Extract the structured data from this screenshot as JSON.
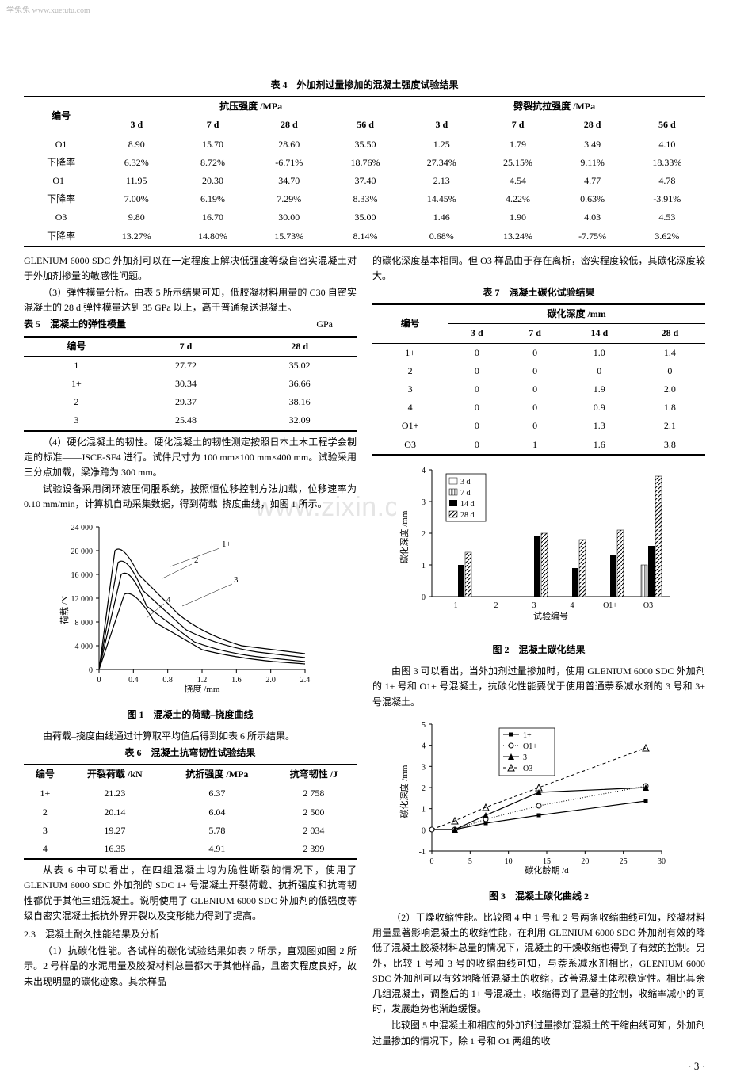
{
  "watermark_top": "学兔兔 www.xuetutu.com",
  "watermark_center": "www.zixin.com.cn",
  "table4": {
    "title": "表 4　外加剂过量掺加的混凝土强度试验结果",
    "col_no": "编号",
    "group1": "抗压强度 /MPa",
    "group2": "劈裂抗拉强度 /MPa",
    "sub": [
      "3 d",
      "7 d",
      "28 d",
      "56 d",
      "3 d",
      "7 d",
      "28 d",
      "56 d"
    ],
    "rows": [
      [
        "O1",
        "8.90",
        "15.70",
        "28.60",
        "35.50",
        "1.25",
        "1.79",
        "3.49",
        "4.10"
      ],
      [
        "下降率",
        "6.32%",
        "8.72%",
        "-6.71%",
        "18.76%",
        "27.34%",
        "25.15%",
        "9.11%",
        "18.33%"
      ],
      [
        "O1+",
        "11.95",
        "20.30",
        "34.70",
        "37.40",
        "2.13",
        "4.54",
        "4.77",
        "4.78"
      ],
      [
        "下降率",
        "7.00%",
        "6.19%",
        "7.29%",
        "8.33%",
        "14.45%",
        "4.22%",
        "0.63%",
        "-3.91%"
      ],
      [
        "O3",
        "9.80",
        "16.70",
        "30.00",
        "35.00",
        "1.46",
        "1.90",
        "4.03",
        "4.53"
      ],
      [
        "下降率",
        "13.27%",
        "14.80%",
        "15.73%",
        "8.14%",
        "0.68%",
        "13.24%",
        "-7.75%",
        "3.62%"
      ]
    ]
  },
  "left": {
    "p1": "GLENIUM 6000 SDC 外加剂可以在一定程度上解决低强度等级自密实混凝土对于外加剂掺量的敏感性问题。",
    "p2": "（3）弹性模量分析。由表 5 所示结果可知，低胶凝材料用量的 C30 自密实混凝土的 28 d 弹性模量达到 35 GPa 以上，高于普通泵送混凝土。",
    "table5": {
      "title": "表 5　混凝土的弹性模量",
      "unit": "GPa",
      "headers": [
        "编号",
        "7 d",
        "28 d"
      ],
      "rows": [
        [
          "1",
          "27.72",
          "35.02"
        ],
        [
          "1+",
          "30.34",
          "36.66"
        ],
        [
          "2",
          "29.37",
          "38.16"
        ],
        [
          "3",
          "25.48",
          "32.09"
        ]
      ]
    },
    "p3": "（4）硬化混凝土的韧性。硬化混凝土的韧性测定按照日本土木工程学会制定的标准——JSCE-SF4 进行。试件尺寸为 100 mm×100 mm×400 mm。试验采用三分点加载，梁净跨为 300 mm。",
    "p4": "试验设备采用闭环液压伺服系统，按照恒位移控制方法加载，位移速率为 0.10 mm/min，计算机自动采集数据，得到荷载–挠度曲线，如图 1 所示。",
    "fig1": {
      "caption": "图 1　混凝土的荷载–挠度曲线",
      "ylabel": "荷载 /N",
      "xlabel": "挠度 /mm",
      "yticks": [
        "0",
        "4 000",
        "8 000",
        "12 000",
        "16 000",
        "20 000",
        "24 000"
      ],
      "xticks": [
        "0",
        "0.4",
        "0.8",
        "1.2",
        "1.6",
        "2.0",
        "2.4"
      ],
      "labels": [
        "1+",
        "2",
        "3",
        "4"
      ]
    },
    "p5": "由荷载–挠度曲线通过计算取平均值后得到如表 6 所示结果。",
    "table6": {
      "title": "表 6　混凝土抗弯韧性试验结果",
      "headers": [
        "编号",
        "开裂荷载 /kN",
        "抗折强度 /MPa",
        "抗弯韧性 /J"
      ],
      "rows": [
        [
          "1+",
          "21.23",
          "6.37",
          "2 758"
        ],
        [
          "2",
          "20.14",
          "6.04",
          "2 500"
        ],
        [
          "3",
          "19.27",
          "5.78",
          "2 034"
        ],
        [
          "4",
          "16.35",
          "4.91",
          "2 399"
        ]
      ]
    },
    "p6": "从表 6 中可以看出，在四组混凝土均为脆性断裂的情况下，使用了 GLENIUM 6000 SDC 外加剂的 SDC 1+ 号混凝土开裂荷载、抗折强度和抗弯韧性都优于其他三组混凝土。说明使用了 GLENIUM 6000 SDC 外加剂的低强度等级自密实混凝土抵抗外界开裂以及变形能力得到了提高。",
    "h23": "2.3　混凝土耐久性能结果及分析",
    "p7": "（1）抗碳化性能。各试样的碳化试验结果如表 7 所示，直观图如图 2 所示。2 号样品的水泥用量及胶凝材料总量都大于其他样品，且密实程度良好，故未出现明显的碳化迹象。其余样品"
  },
  "right": {
    "p1": "的碳化深度基本相同。但 O3 样品由于存在离析，密实程度较低，其碳化深度较大。",
    "table7": {
      "title": "表 7　混凝土碳化试验结果",
      "col_no": "编号",
      "group": "碳化深度 /mm",
      "sub": [
        "3 d",
        "7 d",
        "14 d",
        "28 d"
      ],
      "rows": [
        [
          "1+",
          "0",
          "0",
          "1.0",
          "1.4"
        ],
        [
          "2",
          "0",
          "0",
          "0",
          "0"
        ],
        [
          "3",
          "0",
          "0",
          "1.9",
          "2.0"
        ],
        [
          "4",
          "0",
          "0",
          "0.9",
          "1.8"
        ],
        [
          "O1+",
          "0",
          "0",
          "1.3",
          "2.1"
        ],
        [
          "O3",
          "0",
          "1",
          "1.6",
          "3.8"
        ]
      ]
    },
    "fig2": {
      "caption": "图 2　混凝土碳化结果",
      "ylabel": "碳化深度 /mm",
      "xlabel": "试验编号",
      "yticks": [
        "0",
        "1",
        "2",
        "3",
        "4"
      ],
      "xlabs": [
        "1+",
        "2",
        "3",
        "4",
        "O1+",
        "O3"
      ],
      "legend": [
        "3 d",
        "7 d",
        "14 d",
        "28 d"
      ],
      "data": {
        "d3": [
          0,
          0,
          0,
          0,
          0,
          0
        ],
        "d7": [
          0,
          0,
          0,
          0,
          0,
          1
        ],
        "d14": [
          1.0,
          0,
          1.9,
          0.9,
          1.3,
          1.6
        ],
        "d28": [
          1.4,
          0,
          2.0,
          1.8,
          2.1,
          3.8
        ]
      }
    },
    "p2": "由图 3 可以看出，当外加剂过量掺加时，使用 GLENIUM 6000 SDC 外加剂的 1+ 号和 O1+ 号混凝土，抗碳化性能要优于使用普通萘系减水剂的 3 号和 3+ 号混凝土。",
    "fig3": {
      "caption": "图 3　混凝土碳化曲线 2",
      "ylabel": "碳化深度 /mm",
      "xlabel": "碳化龄期 /d",
      "yticks": [
        "-1",
        "0",
        "1",
        "2",
        "3",
        "4",
        "5"
      ],
      "xticks": [
        "0",
        "5",
        "10",
        "15",
        "20",
        "25",
        "30"
      ],
      "legend": [
        "1+",
        "O1+",
        "3",
        "O3"
      ]
    },
    "p3": "（2）干燥收缩性能。比较图 4 中 1 号和 2 号两条收缩曲线可知，胶凝材料用量显著影响混凝土的收缩性能，在利用 GLENIUM 6000 SDC 外加剂有效的降低了混凝土胶凝材料总量的情况下，混凝土的干燥收缩也得到了有效的控制。另外，比较 1 号和 3 号的收缩曲线可知，与萘系减水剂相比，GLENIUM 6000 SDC 外加剂可以有效地降低混凝土的收缩，改善混凝土体积稳定性。相比其余几组混凝土，调整后的 1+ 号混凝土，收缩得到了显著的控制，收缩率减小的同时，发展趋势也渐趋缓慢。",
    "p4": "比较图 5 中混凝土和相应的外加剂过量掺加混凝土的干缩曲线可知，外加剂过量掺加的情况下，除 1 号和 O1 两组的收"
  },
  "page_num": "· 3 ·"
}
